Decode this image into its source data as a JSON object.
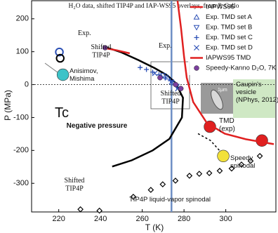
{
  "chart_data": {
    "type": "scatter",
    "title": "H₂O data, shifted TIP4P and IAP-WS95 overlays, from P. Gallo",
    "x_label": "T (K)",
    "y_label": "P (MPa)",
    "xlim": [
      207,
      324
    ],
    "ylim": [
      -387,
      255
    ],
    "xticks": [
      220,
      240,
      260,
      280,
      300
    ],
    "yticks": [
      200,
      100,
      0,
      -100,
      -200,
      -300
    ],
    "vline": {
      "value": 274,
      "color": "#6e8fc4"
    },
    "zero_line": true,
    "legend": "upper right",
    "series": [
      {
        "name": "IAPWS95",
        "color": "#e02020",
        "marker": "line",
        "x": [
          276.9,
          278.6,
          280,
          281.3,
          284.4,
          291,
          299.5,
          309.6,
          323
        ],
        "values": [
          255,
          170,
          86,
          21,
          -53,
          -117,
          -149,
          -166,
          -181
        ]
      },
      {
        "name": "Exp. TMD set A",
        "color": "#2b4fb5",
        "marker": "triangle",
        "x": [
          272,
          275
        ],
        "values": [
          22,
          5
        ]
      },
      {
        "name": "Exp. TMD set B",
        "color": "#2b4fb5",
        "marker": "triangle-down",
        "x": [
          270,
          276.5
        ],
        "values": [
          28,
          -5
        ]
      },
      {
        "name": "Exp. TMD set C",
        "color": "#2b4fb5",
        "marker": "plus",
        "x": [
          259,
          262,
          265,
          268,
          271,
          273.5
        ],
        "values": [
          52,
          46,
          38,
          30,
          20,
          12
        ]
      },
      {
        "name": "Exp. TMD set D",
        "color": "#2b4fb5",
        "marker": "cross",
        "x": [
          266,
          274,
          277
        ],
        "values": [
          34,
          8,
          -12
        ]
      },
      {
        "name": "IAPWS95 TMD",
        "color": "#e02020",
        "marker": "line",
        "x": [
          242,
          248,
          254
        ],
        "values": [
          111,
          104,
          95
        ]
      },
      {
        "name": "Speedy-Kanno D₂O, 7K",
        "color": "#7b3f9e",
        "marker": "circle",
        "x": [
          242.2,
          268.5,
          276,
          278.5
        ],
        "values": [
          112,
          21,
          0,
          -12
        ]
      }
    ],
    "overlays": [
      {
        "color": "#000000",
        "marker": "line",
        "x": [
          242,
          250,
          258,
          266,
          272,
          276,
          279.5,
          279,
          273,
          265,
          255,
          245.6
        ],
        "values": [
          115,
          98,
          75,
          50,
          28,
          5,
          -40,
          -100,
          -165,
          -200,
          -230,
          -249
        ]
      },
      {
        "color": "#000000",
        "marker": "dashed",
        "x": [
          286.7,
          292.7,
          298.1
        ],
        "values": [
          -149,
          -170,
          -208
        ]
      },
      {
        "color": "#000000",
        "marker": "diamond",
        "x": [
          230.4,
          239.5,
          255.7,
          264.1,
          269.8,
          275.9,
          282.6,
          287.3,
          292.1,
          297.1,
          302.8,
          307.5,
          311.9,
          316.3
        ],
        "values": [
          -379,
          -383,
          -341,
          -320,
          -303,
          -292,
          -277,
          -271,
          -269,
          -262,
          -255,
          -243,
          -232,
          -217
        ]
      },
      {
        "color": "#e02020",
        "marker": "big-circle",
        "x": [
          292.4,
          317.3
        ],
        "values": [
          -128,
          -170
        ]
      },
      {
        "color": "#f2e13a",
        "marker": "big-circle",
        "x": [
          298.8
        ],
        "values": [
          -217
        ]
      },
      {
        "color": "#2b4fb5",
        "marker": "ring",
        "x": [
          220.3
        ],
        "values": [
          99
        ]
      },
      {
        "color": "#000000",
        "marker": "ring",
        "x": [
          220.7
        ],
        "values": [
          80
        ]
      },
      {
        "color": "#3cc3c8",
        "marker": "big-circle",
        "x": [
          222
        ],
        "values": [
          30
        ]
      }
    ],
    "annotations": [
      {
        "lines": [
          "Exp."
        ]
      },
      {
        "lines": [
          "Shifted",
          "TIP4P"
        ]
      },
      {
        "lines": [
          "Exp."
        ]
      },
      {
        "lines": [
          "Shifted",
          "TIP4P"
        ]
      },
      {
        "lines": [
          "Anisimov,",
          "Mishima"
        ]
      },
      {
        "lines": [
          "Tc"
        ]
      },
      {
        "lines": [
          "Negative pressure"
        ]
      },
      {
        "lines": [
          "Caupin's",
          "vesicle",
          "(NPhys,",
          "2012)"
        ]
      },
      {
        "lines": [
          "TMD",
          "(exp)"
        ]
      },
      {
        "lines": [
          "Speedy",
          "spinodal"
        ]
      },
      {
        "lines": [
          "Shifted",
          "TIP4P"
        ]
      },
      {
        "lines": [
          "TIP4P liquid-vapor spinodal"
        ]
      },
      {
        "lines": [
          "1μm"
        ]
      }
    ]
  }
}
